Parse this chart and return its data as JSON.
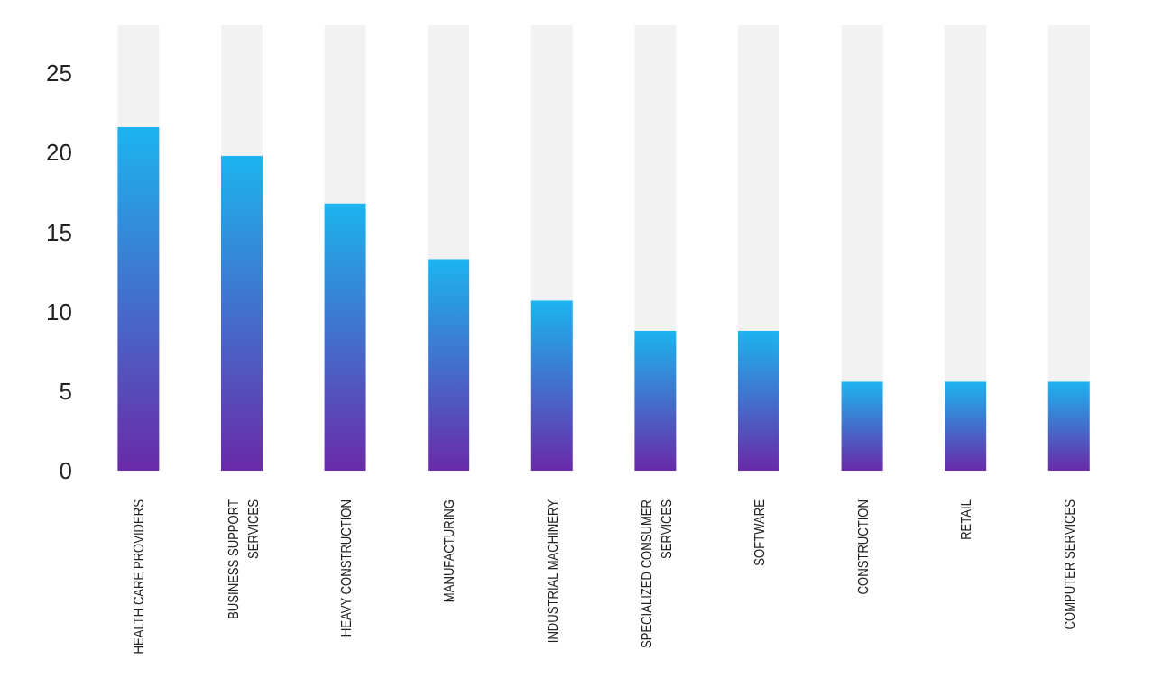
{
  "chart_data": {
    "type": "bar",
    "stacked": true,
    "categories": [
      "HEALTH CARE PROVIDERS",
      "BUSINESS SUPPORT\nSERVICES",
      "HEAVY CONSTRUCTION",
      "MANUFACTURING",
      "INDUSTRIAL MACHINERY",
      "SPECIALIZED CONSUMER\nSERVICES",
      "SOFTWARE",
      "CONSTRUCTION",
      "RETAIL",
      "COMPUTER SERVICES"
    ],
    "series": [
      {
        "color": "#1cb4f0",
        "values": [
          21.6,
          19.8,
          16.8,
          13.3,
          10.7,
          8.8,
          8.8,
          5.6,
          5.6,
          5.6
        ]
      },
      {
        "color": "#f2f2f2",
        "values": [
          6.4,
          8.2,
          11.2,
          14.7,
          17.3,
          19.2,
          19.2,
          22.4,
          22.4,
          22.4
        ]
      }
    ],
    "ylim": [
      0,
      28
    ],
    "yticks": [
      0,
      5,
      10,
      15,
      20,
      25
    ],
    "grid": false,
    "legend": false
  }
}
